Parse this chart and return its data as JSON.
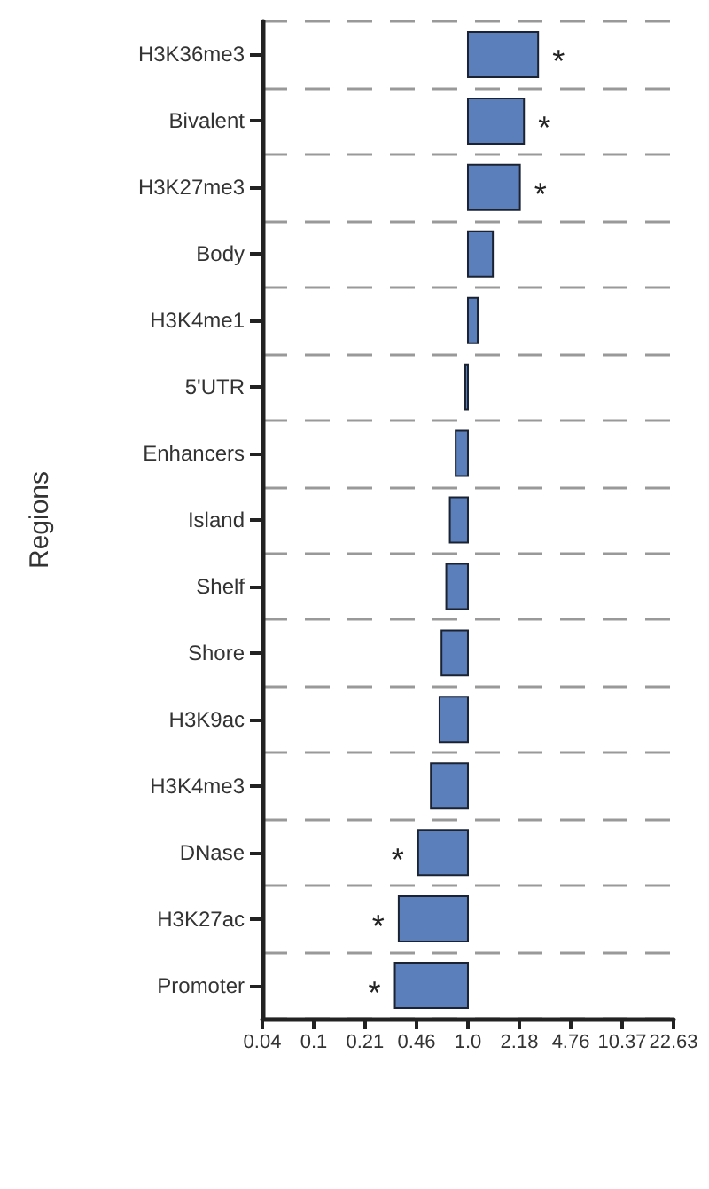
{
  "chart_data": {
    "type": "bar",
    "orientation": "horizontal",
    "ylabel": "Regions",
    "categories": [
      "H3K36me3",
      "Bivalent",
      "H3K27me3",
      "Body",
      "H3K4me1",
      "5'UTR",
      "Enhancers",
      "Island",
      "Shelf",
      "Shore",
      "H3K9ac",
      "H3K4me3",
      "DNase",
      "H3K27ac",
      "Promoter"
    ],
    "base": [
      1,
      1,
      1,
      1,
      1,
      1,
      1,
      1,
      1,
      1,
      1,
      1,
      1,
      1,
      1
    ],
    "values": [
      1.9,
      1.34,
      1.2,
      0.46,
      0.16,
      -0.04,
      -0.17,
      -0.24,
      -0.28,
      -0.33,
      -0.35,
      -0.43,
      -0.53,
      -0.65,
      -0.67
    ],
    "color": "#5b7fbb",
    "log": "x",
    "xlim": [
      0.0442,
      22.63
    ],
    "xticks": [
      {
        "value": 0.0442,
        "label": "0.04"
      },
      {
        "value": 0.0964,
        "label": "0.1"
      },
      0.21,
      {
        "value": 0.4587,
        "label": "0.46"
      },
      {
        "value": 1,
        "label": "1.0"
      },
      2.18,
      4.76,
      10.37,
      22.63
    ],
    "grid": "y",
    "annotations": [
      {
        "text": "*",
        "x": 2.9,
        "y": "H3K36me3"
      },
      {
        "text": "*",
        "x": 2.34,
        "y": "Bivalent"
      },
      {
        "text": "*",
        "x": 2.2,
        "y": "H3K27me3"
      },
      {
        "text": "*",
        "x": 0.47,
        "y": "DNase"
      },
      {
        "text": "*",
        "x": 0.35,
        "y": "H3K27ac"
      },
      {
        "text": "*",
        "x": 0.33,
        "y": "Promoter"
      }
    ]
  }
}
